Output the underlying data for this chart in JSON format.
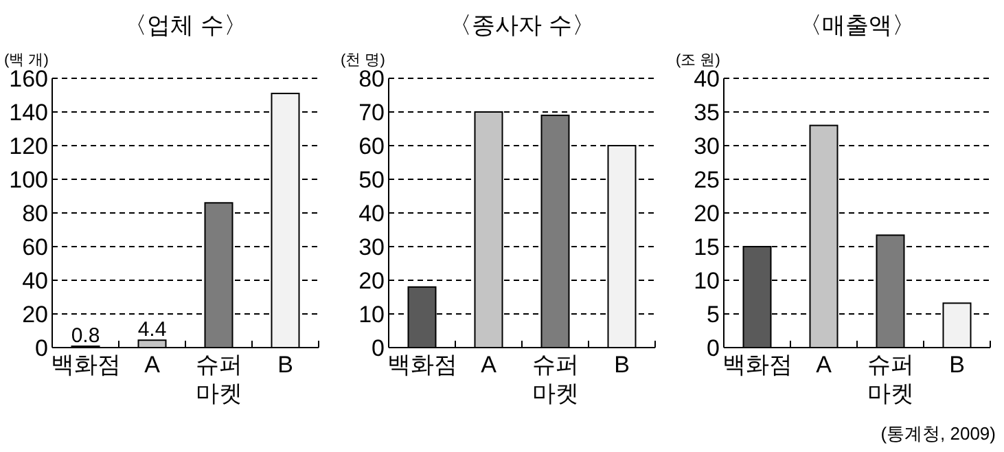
{
  "chart_data": [
    {
      "type": "bar",
      "title": "〈업체 수〉",
      "ylabel": "(백 개)",
      "categories": [
        "백화점",
        "A",
        "슈퍼\n마켓",
        "B"
      ],
      "values": [
        0.8,
        4.4,
        86,
        151
      ],
      "value_labels": [
        "0.8",
        "4.4",
        null,
        null
      ],
      "colors": [
        "#5a5a5a",
        "#c4c4c4",
        "#7c7c7c",
        "#f2f2f2"
      ],
      "ylim": [
        0,
        160
      ],
      "yticks": [
        0,
        20,
        40,
        60,
        80,
        100,
        120,
        140,
        160
      ],
      "grid": "y"
    },
    {
      "type": "bar",
      "title": "〈종사자 수〉",
      "ylabel": "(천 명)",
      "categories": [
        "백화점",
        "A",
        "슈퍼\n마켓",
        "B"
      ],
      "values": [
        18,
        70,
        69,
        60
      ],
      "colors": [
        "#5a5a5a",
        "#c4c4c4",
        "#7c7c7c",
        "#f2f2f2"
      ],
      "ylim": [
        0,
        80
      ],
      "yticks": [
        0,
        10,
        20,
        30,
        40,
        50,
        60,
        70,
        80
      ],
      "grid": "y"
    },
    {
      "type": "bar",
      "title": "〈매출액〉",
      "ylabel": "(조 원)",
      "categories": [
        "백화점",
        "A",
        "슈퍼\n마켓",
        "B"
      ],
      "values": [
        15,
        33,
        16.7,
        6.6
      ],
      "colors": [
        "#5a5a5a",
        "#c4c4c4",
        "#7c7c7c",
        "#f2f2f2"
      ],
      "ylim": [
        0,
        40
      ],
      "yticks": [
        0,
        5,
        10,
        15,
        20,
        25,
        30,
        35,
        40
      ],
      "grid": "y",
      "annotations": [
        "(통계청, 2009)"
      ]
    }
  ]
}
